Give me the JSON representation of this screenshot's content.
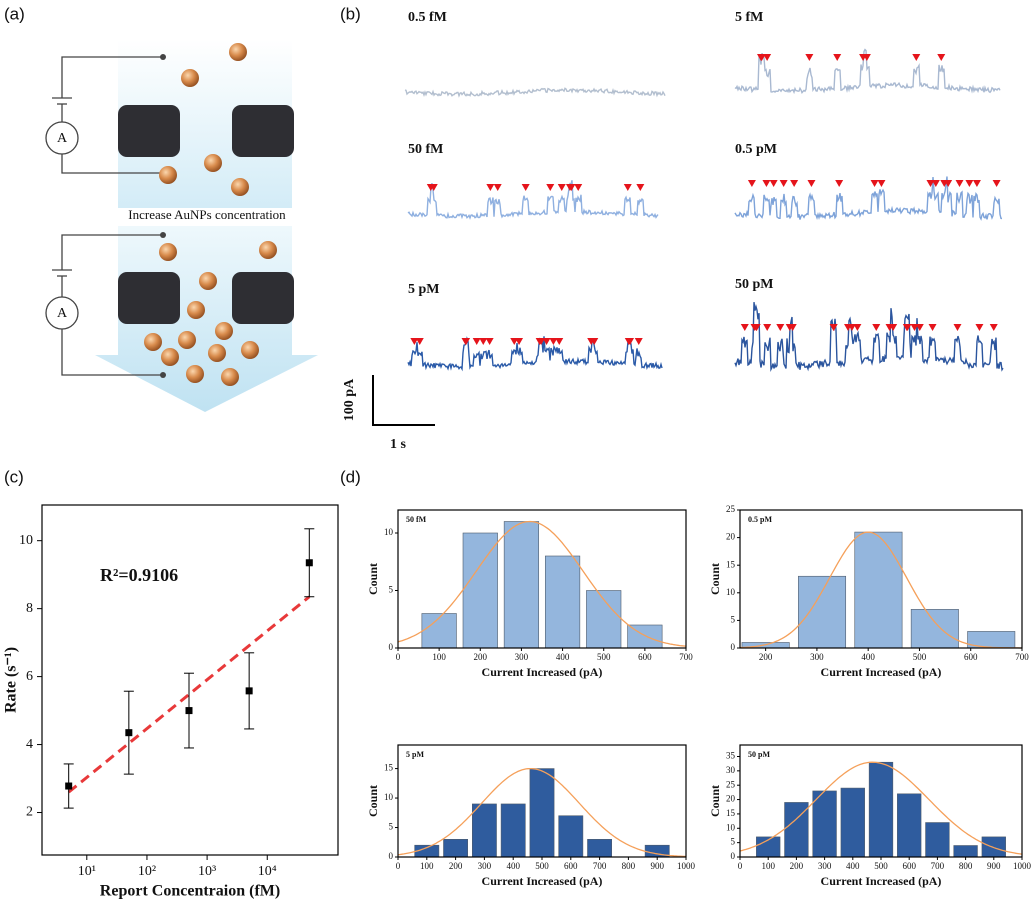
{
  "panels": {
    "a": "(a)",
    "b": "(b)",
    "c": "(c)",
    "d": "(d)"
  },
  "diagram": {
    "ammeter_top": "A",
    "ammeter_bottom": "A",
    "arrow_label": "Increase AuNPs concentration"
  },
  "traces": {
    "labels": [
      "0.5 fM",
      "5 fM",
      "50 fM",
      "0.5 pM",
      "5 pM",
      "50 pM"
    ],
    "scale_current": "100 pA",
    "scale_time": "1 s"
  },
  "chart_data": [
    {
      "type": "scatter",
      "x": [
        5,
        50,
        500,
        5000,
        50000
      ],
      "values": [
        2.78,
        4.35,
        5.0,
        5.58,
        9.35
      ],
      "errors": [
        0.65,
        1.22,
        1.1,
        1.12,
        1.0
      ],
      "color": "#000000",
      "xscale": "log",
      "xlim": [
        1.8,
        150000
      ],
      "ylim": [
        0.75,
        11.05
      ],
      "xticks": [
        {
          "value": 10,
          "label": "10¹"
        },
        {
          "value": 100,
          "label": "10²"
        },
        {
          "value": 1000,
          "label": "10³"
        },
        {
          "value": 10000,
          "label": "10⁴"
        }
      ],
      "yticks": [
        2,
        4,
        6,
        8,
        10
      ],
      "xlabel": "Report Concentraion (fM)",
      "ylabel": "Rate (s⁻¹)",
      "annotation": "R²=0.9106",
      "fit": {
        "x": [
          5,
          50000
        ],
        "values": [
          2.6,
          8.35
        ],
        "color": "#e8393a"
      }
    },
    {
      "type": "histogram",
      "title": "50 fM",
      "bins": [
        50,
        150,
        250,
        350,
        450,
        550,
        650
      ],
      "counts": [
        3,
        10,
        11,
        8,
        5,
        2
      ],
      "color": "#94b6dd",
      "xlim": [
        0,
        700
      ],
      "xticks": [
        0,
        100,
        200,
        300,
        400,
        500,
        600,
        700
      ],
      "ylim": [
        0,
        12
      ],
      "yticks": [
        0,
        5,
        10
      ],
      "xlabel": "Current Increased (pA)",
      "ylabel": "Count",
      "fit": {
        "mean": 320,
        "sd": 130,
        "peak": 11,
        "color": "#f5a05a"
      }
    },
    {
      "type": "histogram",
      "title": "0.5 pM",
      "bins": [
        145,
        255,
        365,
        475,
        585,
        695
      ],
      "counts": [
        1,
        13,
        21,
        7,
        3
      ],
      "color": "#94b6dd",
      "xlim": [
        150,
        700
      ],
      "xticks": [
        200,
        300,
        400,
        500,
        600,
        700
      ],
      "ylim": [
        0,
        25
      ],
      "yticks": [
        0,
        5,
        10,
        15,
        20,
        25
      ],
      "xlabel": "Current Increased (pA)",
      "ylabel": "Count",
      "fit": {
        "mean": 400,
        "sd": 75,
        "peak": 21,
        "color": "#f5a05a"
      }
    },
    {
      "type": "histogram",
      "title": "5 pM",
      "bins": [
        50,
        150,
        250,
        350,
        450,
        550,
        650,
        750,
        850,
        950
      ],
      "counts": [
        2,
        3,
        9,
        9,
        15,
        7,
        3,
        0,
        2
      ],
      "color": "#2f5c9e",
      "xlim": [
        0,
        1000
      ],
      "xticks": [
        0,
        100,
        200,
        300,
        400,
        500,
        600,
        700,
        800,
        900,
        1000
      ],
      "ylim": [
        0,
        19
      ],
      "yticks": [
        0,
        5,
        10,
        15
      ],
      "xlabel": "Current Increased (pA)",
      "ylabel": "Count",
      "fit": {
        "mean": 460,
        "sd": 170,
        "peak": 15,
        "color": "#f5a05a"
      }
    },
    {
      "type": "histogram",
      "title": "50 pM",
      "bins": [
        50,
        150,
        250,
        350,
        450,
        550,
        650,
        750,
        850,
        950
      ],
      "counts": [
        7,
        19,
        23,
        24,
        33,
        22,
        12,
        4,
        7
      ],
      "color": "#2f5c9e",
      "xlim": [
        0,
        1000
      ],
      "xticks": [
        0,
        100,
        200,
        300,
        400,
        500,
        600,
        700,
        800,
        900,
        1000
      ],
      "ylim": [
        0,
        39
      ],
      "yticks": [
        0,
        5,
        10,
        15,
        20,
        25,
        30,
        35
      ],
      "xlabel": "Current Increased (pA)",
      "ylabel": "Count",
      "fit": {
        "mean": 470,
        "sd": 200,
        "peak": 33,
        "color": "#f5a05a"
      }
    }
  ]
}
